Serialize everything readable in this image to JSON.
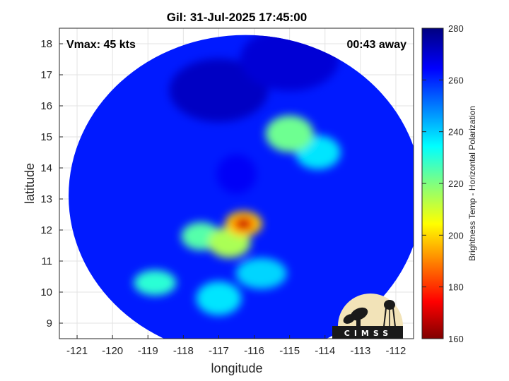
{
  "chart_data": {
    "type": "heatmap",
    "title": "Gil: 31-Jul-2025 17:45:00",
    "xlabel": "longitude",
    "ylabel": "latitude",
    "xlim": [
      -121.5,
      -111.5
    ],
    "ylim": [
      8.5,
      18.5
    ],
    "x_ticks": [
      -121,
      -120,
      -119,
      -118,
      -117,
      -116,
      -115,
      -114,
      -113,
      -112
    ],
    "y_ticks": [
      9,
      10,
      11,
      12,
      13,
      14,
      15,
      16,
      17,
      18
    ],
    "grid": true,
    "colorbar": {
      "label": "Brightness Temp - Horizontal Polarization",
      "range": [
        160,
        280
      ],
      "ticks": [
        160,
        180,
        200,
        220,
        240,
        260,
        280
      ],
      "colormap": "jet"
    },
    "annotations": {
      "vmax": "Vmax: 45 kts",
      "time_away": "00:43 away"
    },
    "features": {
      "swath_background_value": 262,
      "storm_center": {
        "lon": -116.5,
        "lat": 13.8
      },
      "coldest_core": {
        "lon": -116.3,
        "lat": 12.2,
        "value": 165
      },
      "cold_regions": [
        {
          "lon": -116.3,
          "lat": 12.2,
          "value": 168
        },
        {
          "lon": -116.7,
          "lat": 11.6,
          "value": 215
        },
        {
          "lon": -117.5,
          "lat": 11.8,
          "value": 225
        },
        {
          "lon": -115.0,
          "lat": 15.1,
          "value": 222
        },
        {
          "lon": -114.2,
          "lat": 14.5,
          "value": 238
        },
        {
          "lon": -118.8,
          "lat": 10.3,
          "value": 230
        },
        {
          "lon": -117.0,
          "lat": 9.8,
          "value": 238
        },
        {
          "lon": -115.8,
          "lat": 10.6,
          "value": 240
        }
      ],
      "warm_regions": [
        {
          "lon": -117.0,
          "lat": 16.5,
          "value": 272
        },
        {
          "lon": -115.0,
          "lat": 17.5,
          "value": 270
        }
      ]
    }
  },
  "logo": {
    "text": "CIMSS"
  }
}
